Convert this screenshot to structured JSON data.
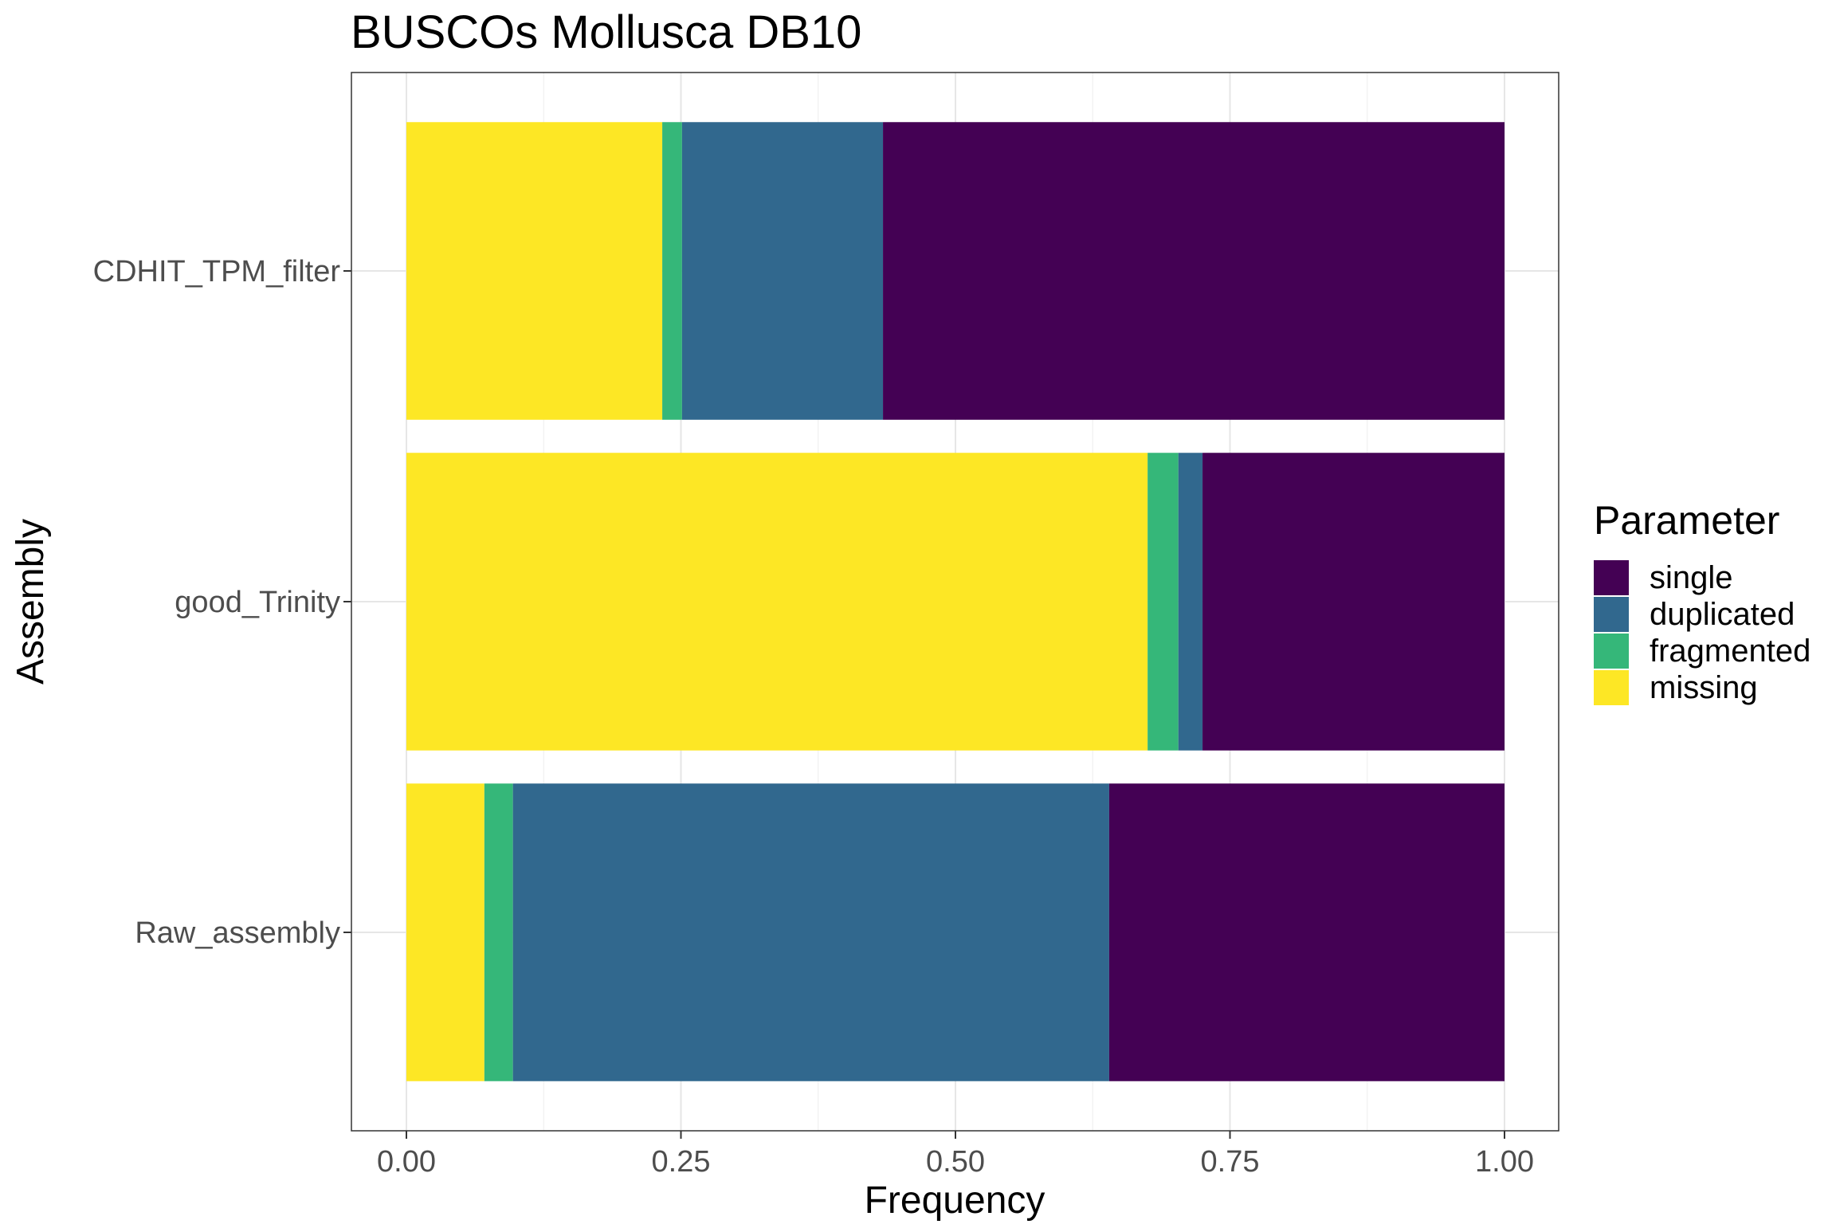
{
  "chart_data": {
    "type": "bar",
    "orientation": "horizontal",
    "stacked": true,
    "title": "BUSCOs Mollusca DB10",
    "xlabel": "Frequency",
    "ylabel": "Assembly",
    "xlim": [
      0,
      1
    ],
    "xticks": [
      0.0,
      0.25,
      0.5,
      0.75,
      1.0
    ],
    "xtick_labels": [
      "0.00",
      "0.25",
      "0.50",
      "0.75",
      "1.00"
    ],
    "grid": true,
    "legend_title": "Parameter",
    "legend_position": "right",
    "categories": [
      "CDHIT_TPM_filter",
      "good_Trinity",
      "Raw_assembly"
    ],
    "stack_order": [
      "missing",
      "fragmented",
      "duplicated",
      "single"
    ],
    "series": [
      {
        "name": "single",
        "color": "#440154",
        "values": [
          0.566,
          0.275,
          0.36
        ]
      },
      {
        "name": "duplicated",
        "color": "#31688E",
        "values": [
          0.183,
          0.022,
          0.543
        ]
      },
      {
        "name": "fragmented",
        "color": "#35B779",
        "values": [
          0.018,
          0.028,
          0.026
        ]
      },
      {
        "name": "missing",
        "color": "#FDE725",
        "values": [
          0.233,
          0.675,
          0.071
        ]
      }
    ]
  }
}
